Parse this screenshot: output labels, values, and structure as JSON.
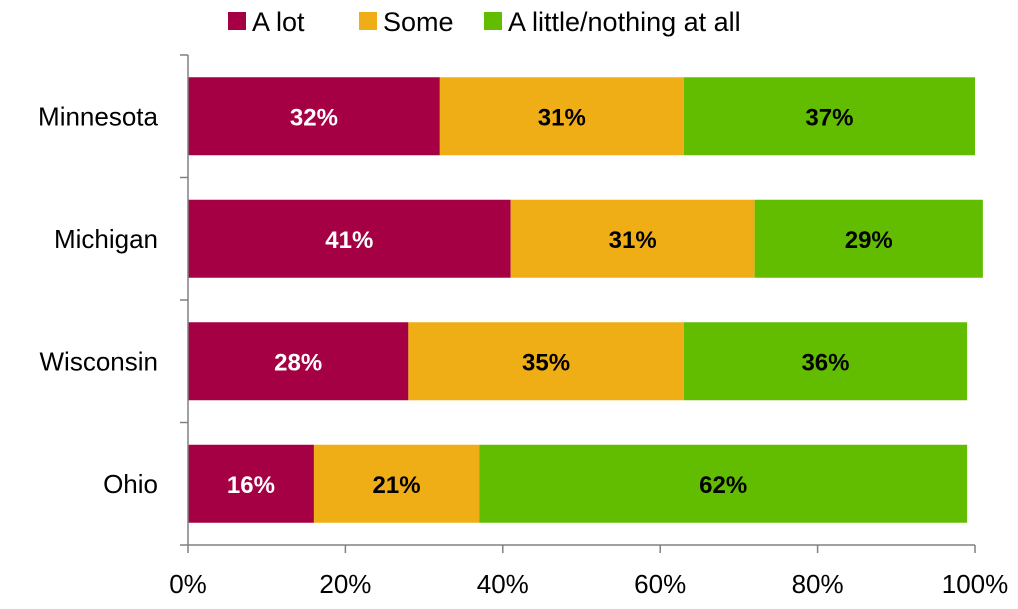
{
  "chart_data": {
    "type": "bar",
    "orientation": "horizontal",
    "stacked": true,
    "categories": [
      "Minnesota",
      "Michigan",
      "Wisconsin",
      "Ohio"
    ],
    "series": [
      {
        "name": "A lot",
        "color": "#A50044",
        "label_color": "#FFFFFF",
        "values": [
          32,
          41,
          28,
          16
        ],
        "labels": [
          "32%",
          "41%",
          "28%",
          "16%"
        ]
      },
      {
        "name": "Some",
        "color": "#EFAE15",
        "label_color": "#000000",
        "values": [
          31,
          31,
          35,
          21
        ],
        "labels": [
          "31%",
          "31%",
          "35%",
          "21%"
        ]
      },
      {
        "name": "A little/nothing at all",
        "color": "#62BD00",
        "label_color": "#000000",
        "values": [
          37,
          29,
          36,
          62
        ],
        "labels": [
          "37%",
          "29%",
          "36%",
          "62%"
        ]
      }
    ],
    "xlim": [
      0,
      100
    ],
    "x_ticks": [
      0,
      20,
      40,
      60,
      80,
      100
    ],
    "x_tick_labels": [
      "0%",
      "20%",
      "40%",
      "60%",
      "80%",
      "100%"
    ],
    "grid": false,
    "legend_position": "top"
  }
}
